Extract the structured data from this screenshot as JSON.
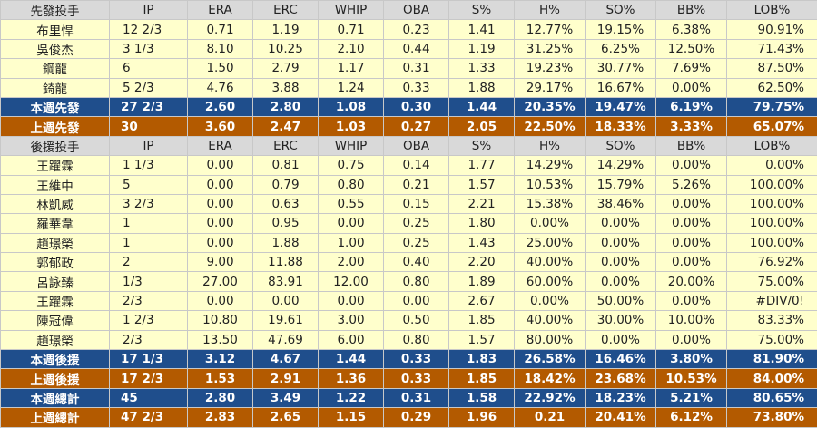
{
  "starters": {
    "header": [
      "先發投手",
      "IP",
      "ERA",
      "ERC",
      "WHIP",
      "OBA",
      "S%",
      "H%",
      "SO%",
      "BB%",
      "LOB%"
    ],
    "rows": [
      [
        "布里悍",
        "12 2/3",
        "0.71",
        "1.19",
        "0.71",
        "0.23",
        "1.41",
        "12.77%",
        "19.15%",
        "6.38%",
        "90.91%"
      ],
      [
        "吳俊杰",
        "3 1/3",
        "8.10",
        "10.25",
        "2.10",
        "0.44",
        "1.19",
        "31.25%",
        "6.25%",
        "12.50%",
        "71.43%"
      ],
      [
        "鋼龍",
        "6",
        "1.50",
        "2.79",
        "1.17",
        "0.31",
        "1.33",
        "19.23%",
        "30.77%",
        "7.69%",
        "87.50%"
      ],
      [
        "錡龍",
        "5 2/3",
        "4.76",
        "3.88",
        "1.24",
        "0.33",
        "1.88",
        "29.17%",
        "16.67%",
        "0.00%",
        "62.50%"
      ]
    ],
    "week_total": [
      "本週先發",
      "27 2/3",
      "2.60",
      "2.80",
      "1.08",
      "0.30",
      "1.44",
      "20.35%",
      "19.47%",
      "6.19%",
      "79.75%"
    ],
    "last_week": [
      "上週先發",
      "30",
      "3.60",
      "2.47",
      "1.03",
      "0.27",
      "2.05",
      "22.50%",
      "18.33%",
      "3.33%",
      "65.07%"
    ]
  },
  "relievers": {
    "header": [
      "後援投手",
      "IP",
      "ERA",
      "ERC",
      "WHIP",
      "OBA",
      "S%",
      "H%",
      "SO%",
      "BB%",
      "LOB%"
    ],
    "rows": [
      [
        "王躍霖",
        "1 1/3",
        "0.00",
        "0.81",
        "0.75",
        "0.14",
        "1.77",
        "14.29%",
        "14.29%",
        "0.00%",
        "0.00%"
      ],
      [
        "王維中",
        "5",
        "0.00",
        "0.79",
        "0.80",
        "0.21",
        "1.57",
        "10.53%",
        "15.79%",
        "5.26%",
        "100.00%"
      ],
      [
        "林凱威",
        "3 2/3",
        "0.00",
        "0.63",
        "0.55",
        "0.15",
        "2.21",
        "15.38%",
        "38.46%",
        "0.00%",
        "100.00%"
      ],
      [
        "羅華韋",
        "1",
        "0.00",
        "0.95",
        "0.00",
        "0.25",
        "1.80",
        "0.00%",
        "0.00%",
        "0.00%",
        "100.00%"
      ],
      [
        "趙璟榮",
        "1",
        "0.00",
        "1.88",
        "1.00",
        "0.25",
        "1.43",
        "25.00%",
        "0.00%",
        "0.00%",
        "100.00%"
      ],
      [
        "郭郁政",
        "2",
        "9.00",
        "11.88",
        "2.00",
        "0.40",
        "2.20",
        "40.00%",
        "0.00%",
        "0.00%",
        "76.92%"
      ],
      [
        "呂詠臻",
        "1/3",
        "27.00",
        "83.91",
        "12.00",
        "0.80",
        "1.89",
        "60.00%",
        "0.00%",
        "20.00%",
        "75.00%"
      ],
      [
        "王躍霖",
        "2/3",
        "0.00",
        "0.00",
        "0.00",
        "0.00",
        "2.67",
        "0.00%",
        "50.00%",
        "0.00%",
        "#DIV/0!"
      ],
      [
        "陳冠偉",
        "1 2/3",
        "10.80",
        "19.61",
        "3.00",
        "0.50",
        "1.85",
        "40.00%",
        "30.00%",
        "10.00%",
        "83.33%"
      ],
      [
        "趙璟榮",
        "2/3",
        "13.50",
        "47.69",
        "6.00",
        "0.80",
        "1.57",
        "80.00%",
        "0.00%",
        "0.00%",
        "75.00%"
      ]
    ],
    "week_total": [
      "本週後援",
      "17 1/3",
      "3.12",
      "4.67",
      "1.44",
      "0.33",
      "1.83",
      "26.58%",
      "16.46%",
      "3.80%",
      "81.90%"
    ],
    "last_week": [
      "上週後援",
      "17 2/3",
      "1.53",
      "2.91",
      "1.36",
      "0.33",
      "1.85",
      "18.42%",
      "23.68%",
      "10.53%",
      "84.00%"
    ]
  },
  "totals": {
    "week_total": [
      "本週總計",
      "45",
      "2.80",
      "3.49",
      "1.22",
      "0.31",
      "1.58",
      "22.92%",
      "18.23%",
      "5.21%",
      "80.65%"
    ],
    "last_week": [
      "上週總計",
      "47 2/3",
      "2.83",
      "2.65",
      "1.15",
      "0.29",
      "1.96",
      "0.21",
      "20.41%",
      "6.12%",
      "73.80%"
    ]
  },
  "colors": {
    "header_bg": "#d9d9d9",
    "data_bg": "#ffffcc",
    "blue_row": "#1f4e8c",
    "brown_row": "#b35a00"
  }
}
